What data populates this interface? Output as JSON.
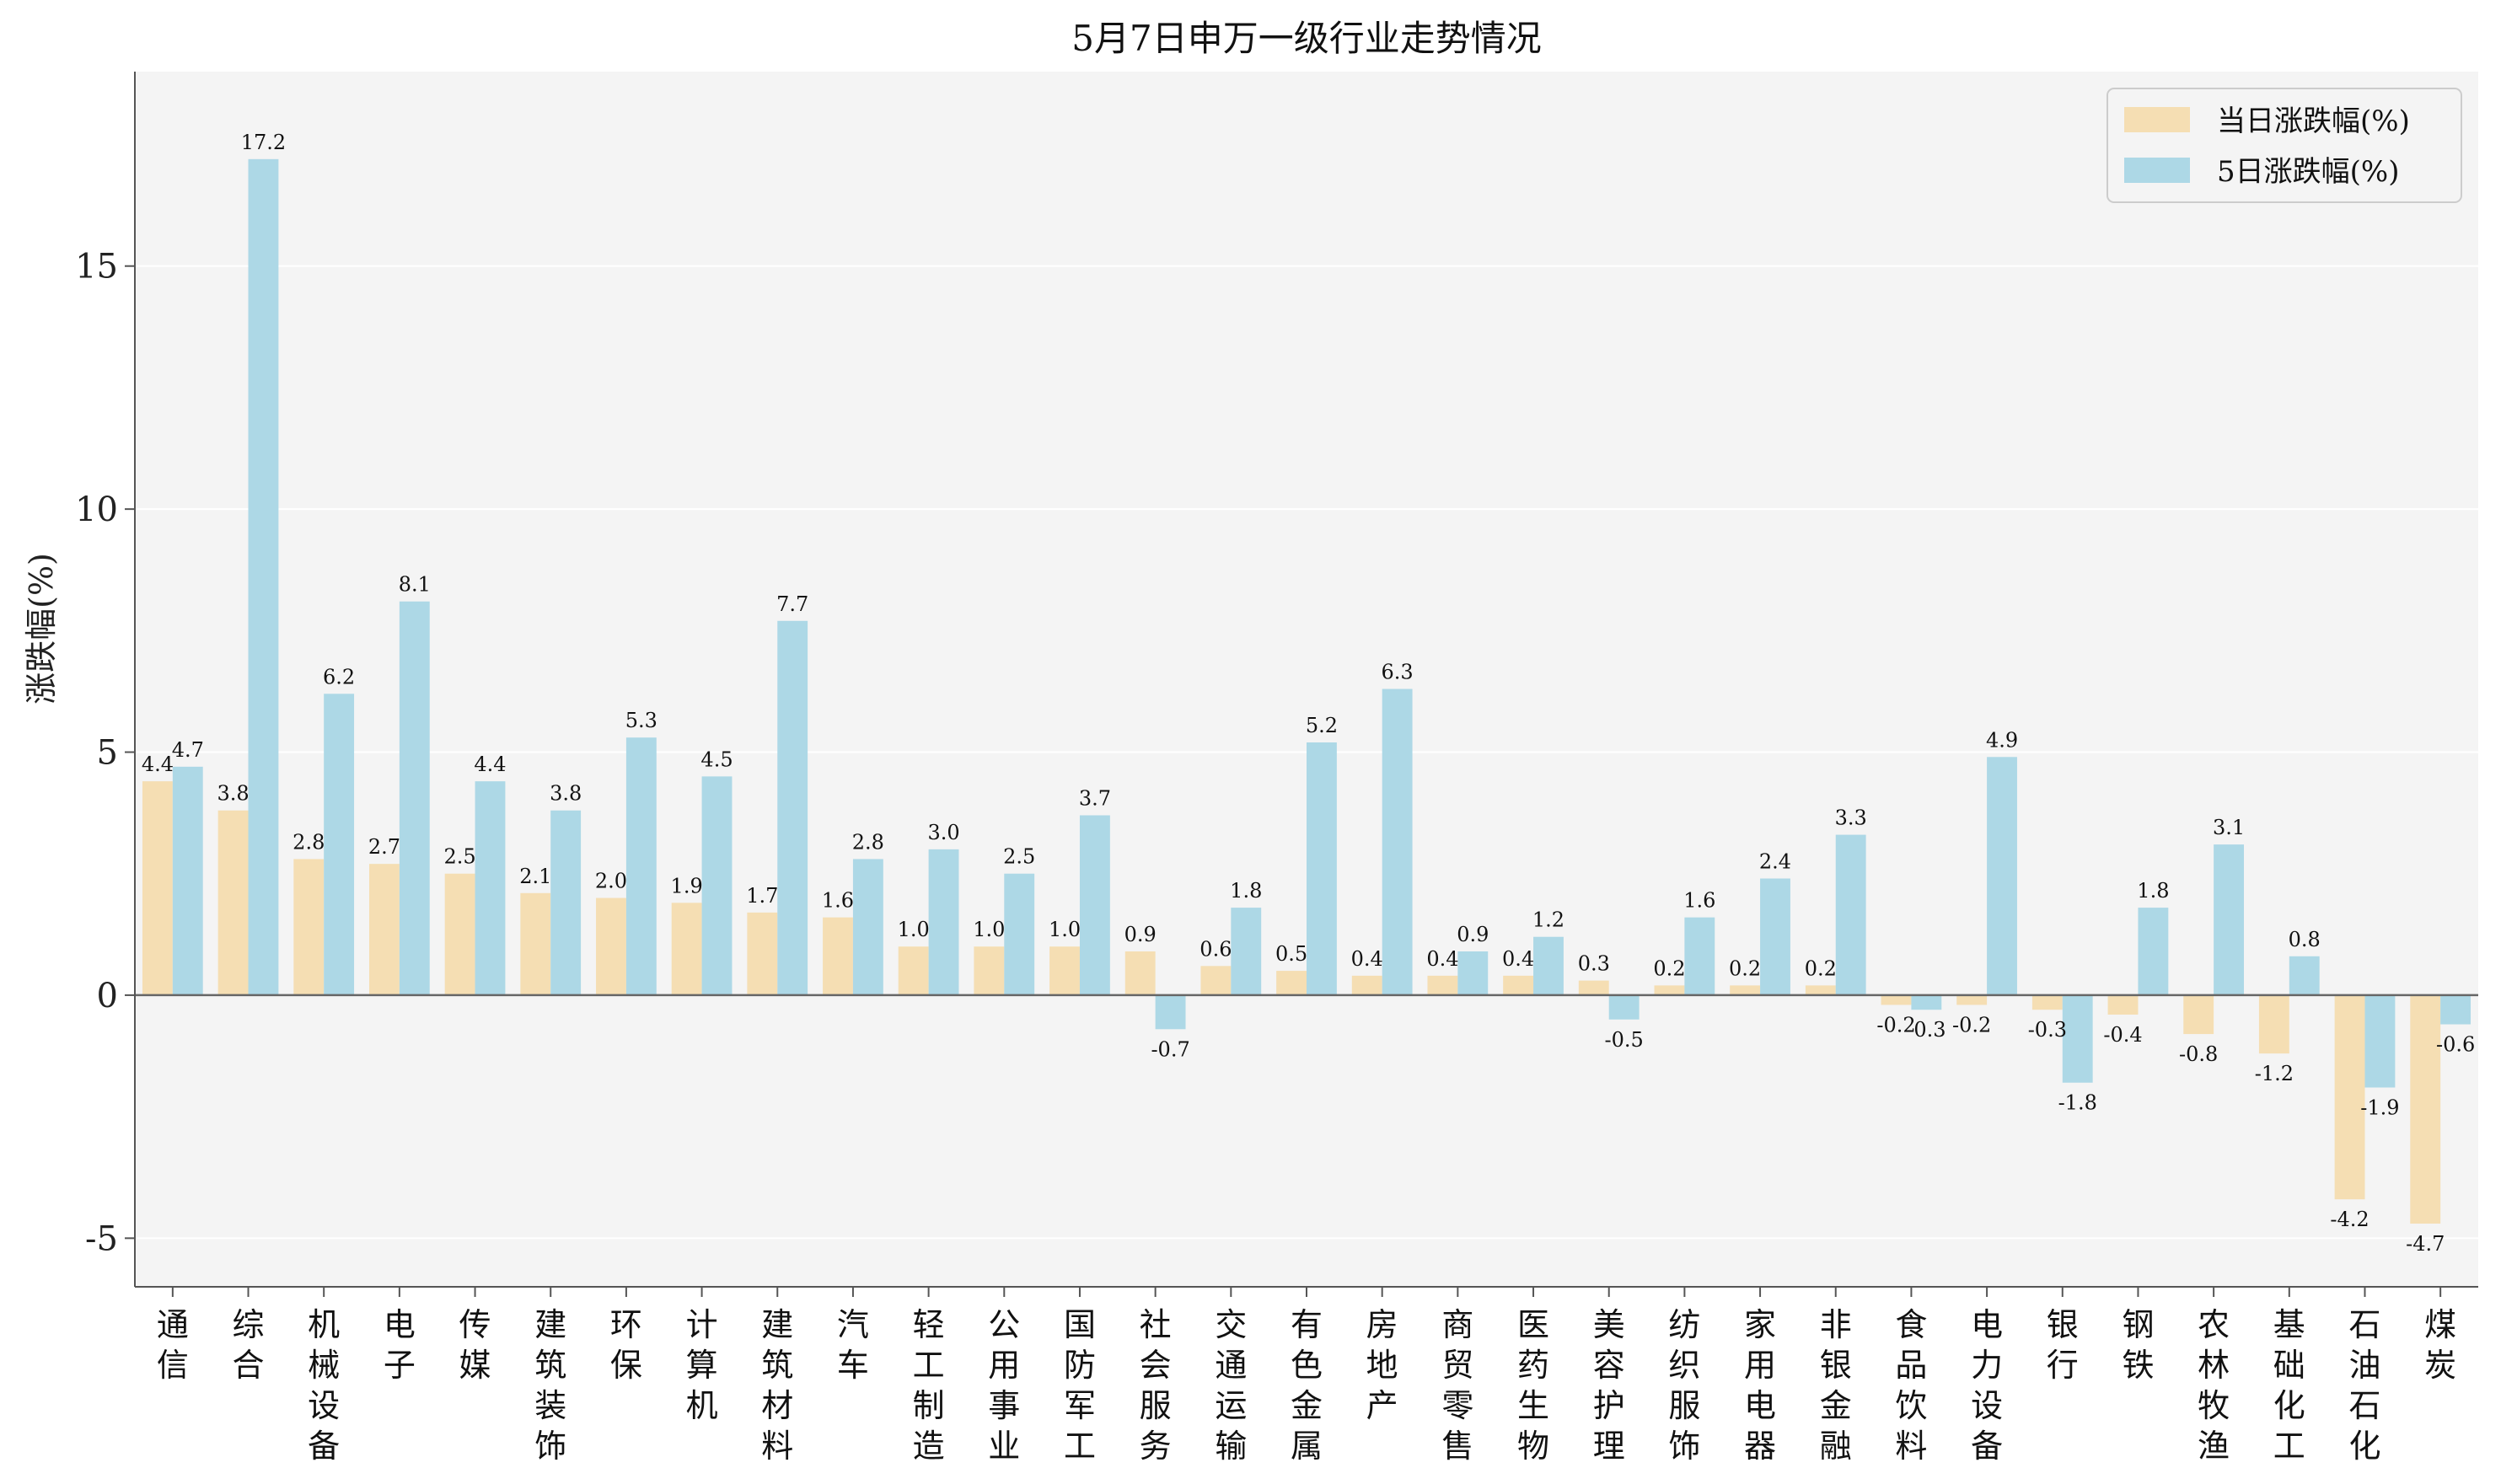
{
  "chart_data": {
    "type": "bar",
    "title": "5月7日申万一级行业走势情况",
    "xlabel": "",
    "ylabel": "涨跌幅(%)",
    "ylim": [
      -6,
      19
    ],
    "yticks": [
      -5,
      0,
      5,
      10,
      15
    ],
    "ytick_labels": [
      "-5",
      "0",
      "5",
      "10",
      "15"
    ],
    "grid": true,
    "legend_position": "top-right",
    "categories": [
      "通信",
      "综合",
      "机械设备",
      "电子",
      "传媒",
      "建筑装饰",
      "环保",
      "计算机",
      "建筑材料",
      "汽车",
      "轻工制造",
      "公用事业",
      "国防军工",
      "社会服务",
      "交通运输",
      "有色金属",
      "房地产",
      "商贸零售",
      "医药生物",
      "美容护理",
      "纺织服饰",
      "家用电器",
      "非银金融",
      "食品饮料",
      "电力设备",
      "银行",
      "钢铁",
      "农林牧渔",
      "基础化工",
      "石油石化",
      "煤炭"
    ],
    "series": [
      {
        "name": "当日涨跌幅(%)",
        "color": "#f5deb3",
        "values": [
          4.4,
          3.8,
          2.8,
          2.7,
          2.5,
          2.1,
          2.0,
          1.9,
          1.7,
          1.6,
          1.0,
          1.0,
          1.0,
          0.9,
          0.6,
          0.5,
          0.4,
          0.4,
          0.4,
          0.3,
          0.2,
          0.2,
          0.2,
          -0.2,
          -0.2,
          -0.3,
          -0.4,
          -0.8,
          -1.2,
          -4.2,
          -4.7
        ],
        "labels": [
          "4.4",
          "3.8",
          "2.8",
          "2.7",
          "2.5",
          "2.1",
          "2.0",
          "1.9",
          "1.7",
          "1.6",
          "1.0",
          "1.0",
          "1.0",
          "0.9",
          "0.6",
          "0.5",
          "0.4",
          "0.4",
          "0.4",
          "0.3",
          "0.2",
          "0.2",
          "0.2",
          "-0.2",
          "-0.2",
          "-0.3",
          "-0.4",
          "-0.8",
          "-1.2",
          "-4.2",
          "-4.7"
        ]
      },
      {
        "name": "5日涨跌幅(%)",
        "color": "#add8e6",
        "values": [
          4.7,
          17.2,
          6.2,
          8.1,
          4.4,
          3.8,
          5.3,
          4.5,
          7.7,
          2.8,
          3.0,
          2.5,
          3.7,
          -0.7,
          1.8,
          5.2,
          6.3,
          0.9,
          1.2,
          -0.5,
          1.6,
          2.4,
          3.3,
          -0.3,
          4.9,
          -1.8,
          1.8,
          3.1,
          0.8,
          -1.9,
          -0.6
        ],
        "labels": [
          "4.7",
          "17.2",
          "6.2",
          "8.1",
          "4.4",
          "3.8",
          "5.3",
          "4.5",
          "7.7",
          "2.8",
          "3.0",
          "2.5",
          "3.7",
          "-0.7",
          "1.8",
          "5.2",
          "6.3",
          "0.9",
          "1.2",
          "-0.5",
          "1.6",
          "2.4",
          "3.3",
          "-0.3",
          "4.9",
          "-1.8",
          "1.8",
          "3.1",
          "0.8",
          "-1.9",
          "-0.6"
        ]
      }
    ]
  }
}
